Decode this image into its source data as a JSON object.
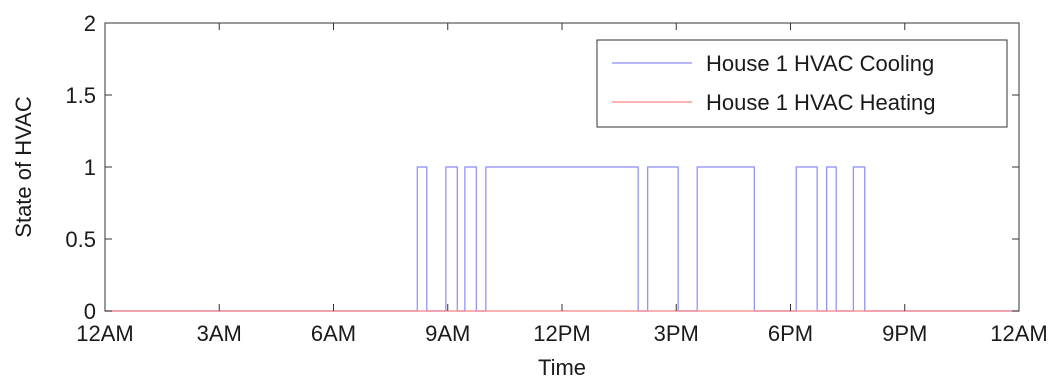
{
  "chart_data": {
    "type": "line",
    "title": "",
    "xlabel": "Time",
    "ylabel": "State of HVAC",
    "xlim": [
      0,
      24
    ],
    "ylim": [
      0,
      2
    ],
    "x_ticks": [
      0,
      3,
      6,
      9,
      12,
      15,
      18,
      21,
      24
    ],
    "x_tick_labels": [
      "12AM",
      "3AM",
      "6AM",
      "9AM",
      "12PM",
      "3PM",
      "6PM",
      "9PM",
      "12AM"
    ],
    "y_ticks": [
      0,
      0.5,
      1,
      1.5,
      2
    ],
    "y_tick_labels": [
      "0",
      "0.5",
      "1",
      "1.5",
      "2"
    ],
    "grid": false,
    "legend_position": "top-right",
    "series": [
      {
        "name": "House 1 HVAC Cooling",
        "color": "#8a8aff",
        "step": true,
        "on_intervals": [
          [
            8.2,
            8.45
          ],
          [
            8.95,
            9.25
          ],
          [
            9.45,
            9.75
          ],
          [
            10.0,
            14.0
          ],
          [
            14.25,
            15.05
          ],
          [
            15.55,
            17.05
          ],
          [
            18.15,
            18.7
          ],
          [
            18.95,
            19.2
          ],
          [
            19.65,
            19.95
          ]
        ]
      },
      {
        "name": "House 1 HVAC Heating",
        "color": "#ff8080",
        "step": true,
        "on_intervals": []
      }
    ]
  }
}
